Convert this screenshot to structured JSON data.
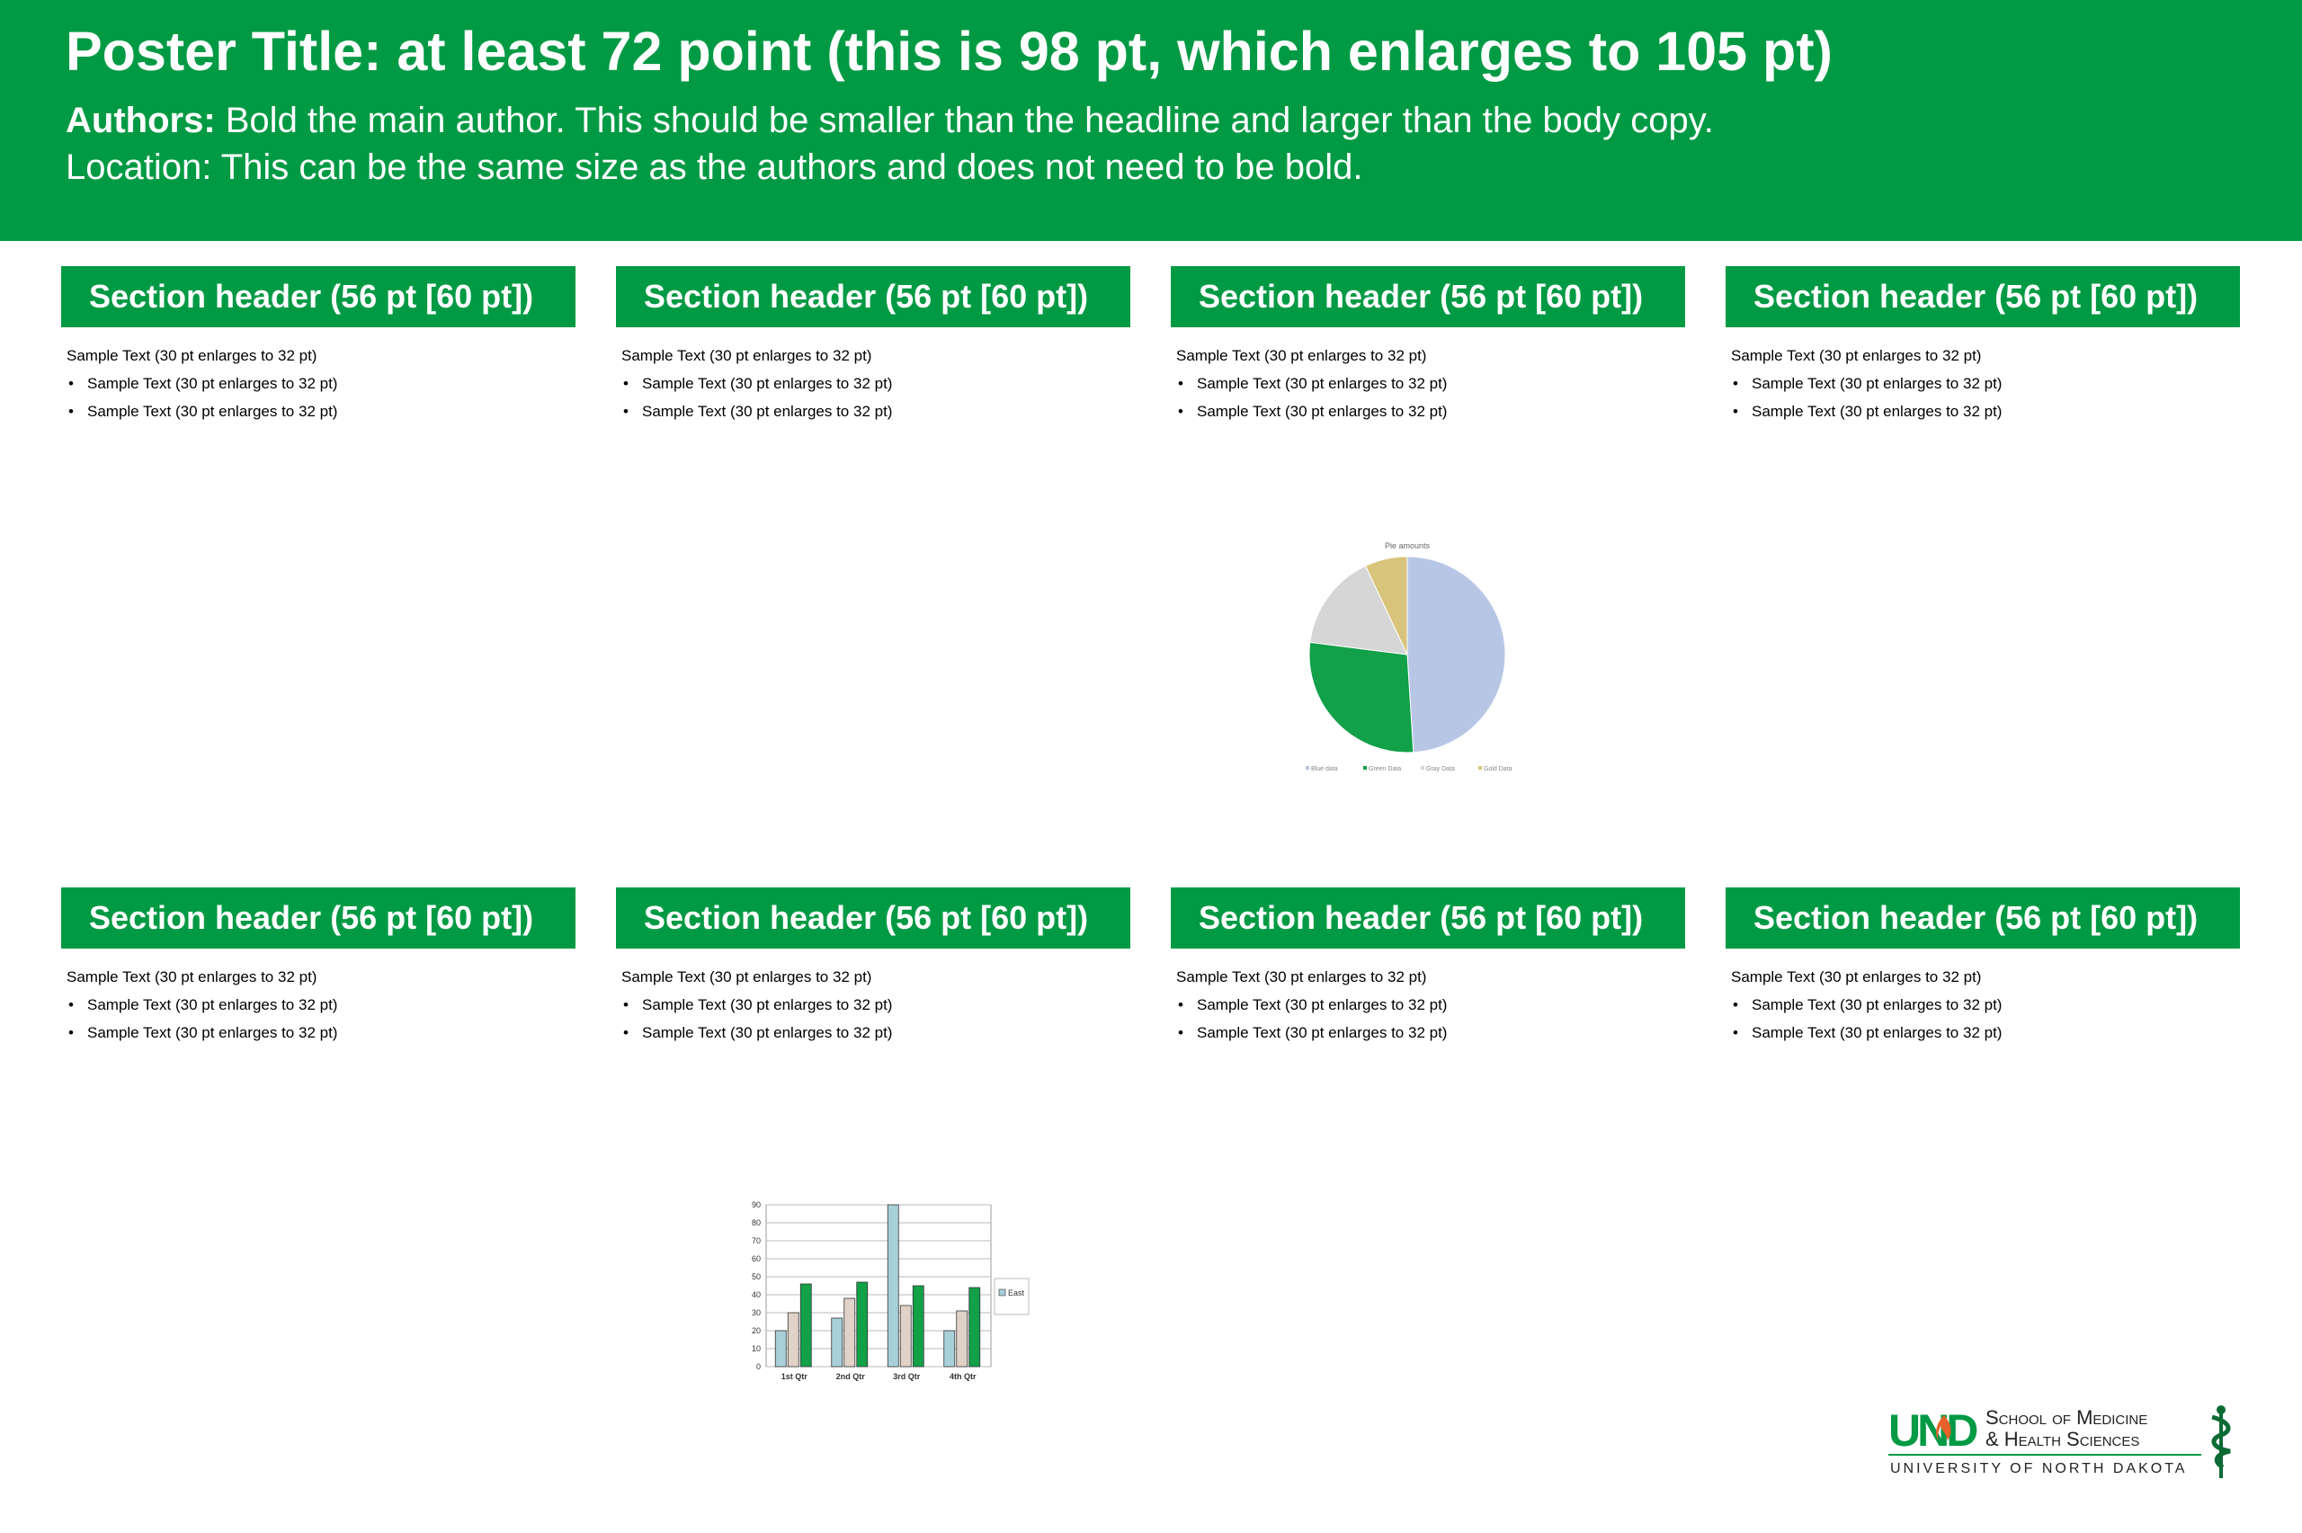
{
  "poster": {
    "title": "Poster Title: at least 72 point (this is 98 pt, which enlarges to 105 pt)",
    "authors_label": "Authors:",
    "authors_text": " Bold the main author. This should be smaller than the headline and larger than the body copy.",
    "location": "Location: This can be the same size as the authors and does not need to be bold."
  },
  "sections": [
    {
      "header": "Section header (56 pt [60 pt])",
      "text": "Sample Text (30 pt enlarges to 32 pt)",
      "bullets": [
        "Sample Text (30 pt enlarges to 32 pt)",
        "Sample Text (30 pt enlarges to 32 pt)"
      ]
    },
    {
      "header": "Section header (56 pt [60 pt])",
      "text": "Sample Text (30 pt enlarges to 32 pt)",
      "bullets": [
        "Sample Text (30 pt enlarges to 32 pt)",
        "Sample Text (30 pt enlarges to 32 pt)"
      ]
    },
    {
      "header": "Section header (56 pt [60 pt])",
      "text": "Sample Text (30 pt enlarges to 32 pt)",
      "bullets": [
        "Sample Text (30 pt enlarges to 32 pt)",
        "Sample Text (30 pt enlarges to 32 pt)"
      ]
    },
    {
      "header": "Section header (56 pt [60 pt])",
      "text": "Sample Text (30 pt enlarges to 32 pt)",
      "bullets": [
        "Sample Text (30 pt enlarges to 32 pt)",
        "Sample Text (30 pt enlarges to 32 pt)"
      ]
    },
    {
      "header": "Section header (56 pt [60 pt])",
      "text": "Sample Text (30 pt enlarges to 32 pt)",
      "bullets": [
        "Sample Text (30 pt enlarges to 32 pt)",
        "Sample Text (30 pt enlarges to 32 pt)"
      ]
    },
    {
      "header": "Section header (56 pt [60 pt])",
      "text": "Sample Text (30 pt enlarges to 32 pt)",
      "bullets": [
        "Sample Text (30 pt enlarges to 32 pt)",
        "Sample Text (30 pt enlarges to 32 pt)"
      ]
    },
    {
      "header": "Section header (56 pt [60 pt])",
      "text": "Sample Text (30 pt enlarges to 32 pt)",
      "bullets": [
        "Sample Text (30 pt enlarges to 32 pt)",
        "Sample Text (30 pt enlarges to 32 pt)"
      ]
    },
    {
      "header": "Section header (56 pt [60 pt])",
      "text": "Sample Text (30 pt enlarges to 32 pt)",
      "bullets": [
        "Sample Text (30 pt enlarges to 32 pt)",
        "Sample Text (30 pt enlarges to 32 pt)"
      ]
    }
  ],
  "logo": {
    "und": "UND",
    "line1": "School of Medicine",
    "line2": "& Health Sciences",
    "line3": "UNIVERSITY OF NORTH DAKOTA"
  },
  "colors": {
    "brand_green": "#009a44"
  },
  "chart_data": [
    {
      "type": "pie",
      "title": "Pie amounts",
      "categories": [
        "Blue data",
        "Green Data",
        "Gray Data",
        "Gold Data"
      ],
      "values": [
        49,
        28,
        16,
        7
      ],
      "colors": [
        "#b8c6e5",
        "#12a049",
        "#d6d6d6",
        "#d8c47a"
      ],
      "legend": "bottom"
    },
    {
      "type": "bar",
      "categories": [
        "1st Qtr",
        "2nd Qtr",
        "3rd Qtr",
        "4th Qtr"
      ],
      "series": [
        {
          "name": "East",
          "values": [
            20,
            27,
            90,
            20
          ]
        },
        {
          "values": [
            30,
            38,
            34,
            31
          ]
        },
        {
          "values": [
            46,
            47,
            45,
            44
          ]
        }
      ],
      "colors": [
        "#a8d0d8",
        "#e0d2c8",
        "#12a049"
      ],
      "ylim": [
        0,
        90
      ],
      "yticks": [
        0,
        10,
        20,
        30,
        40,
        50,
        60,
        70,
        80,
        90
      ],
      "grid": true,
      "legend": "right"
    }
  ]
}
